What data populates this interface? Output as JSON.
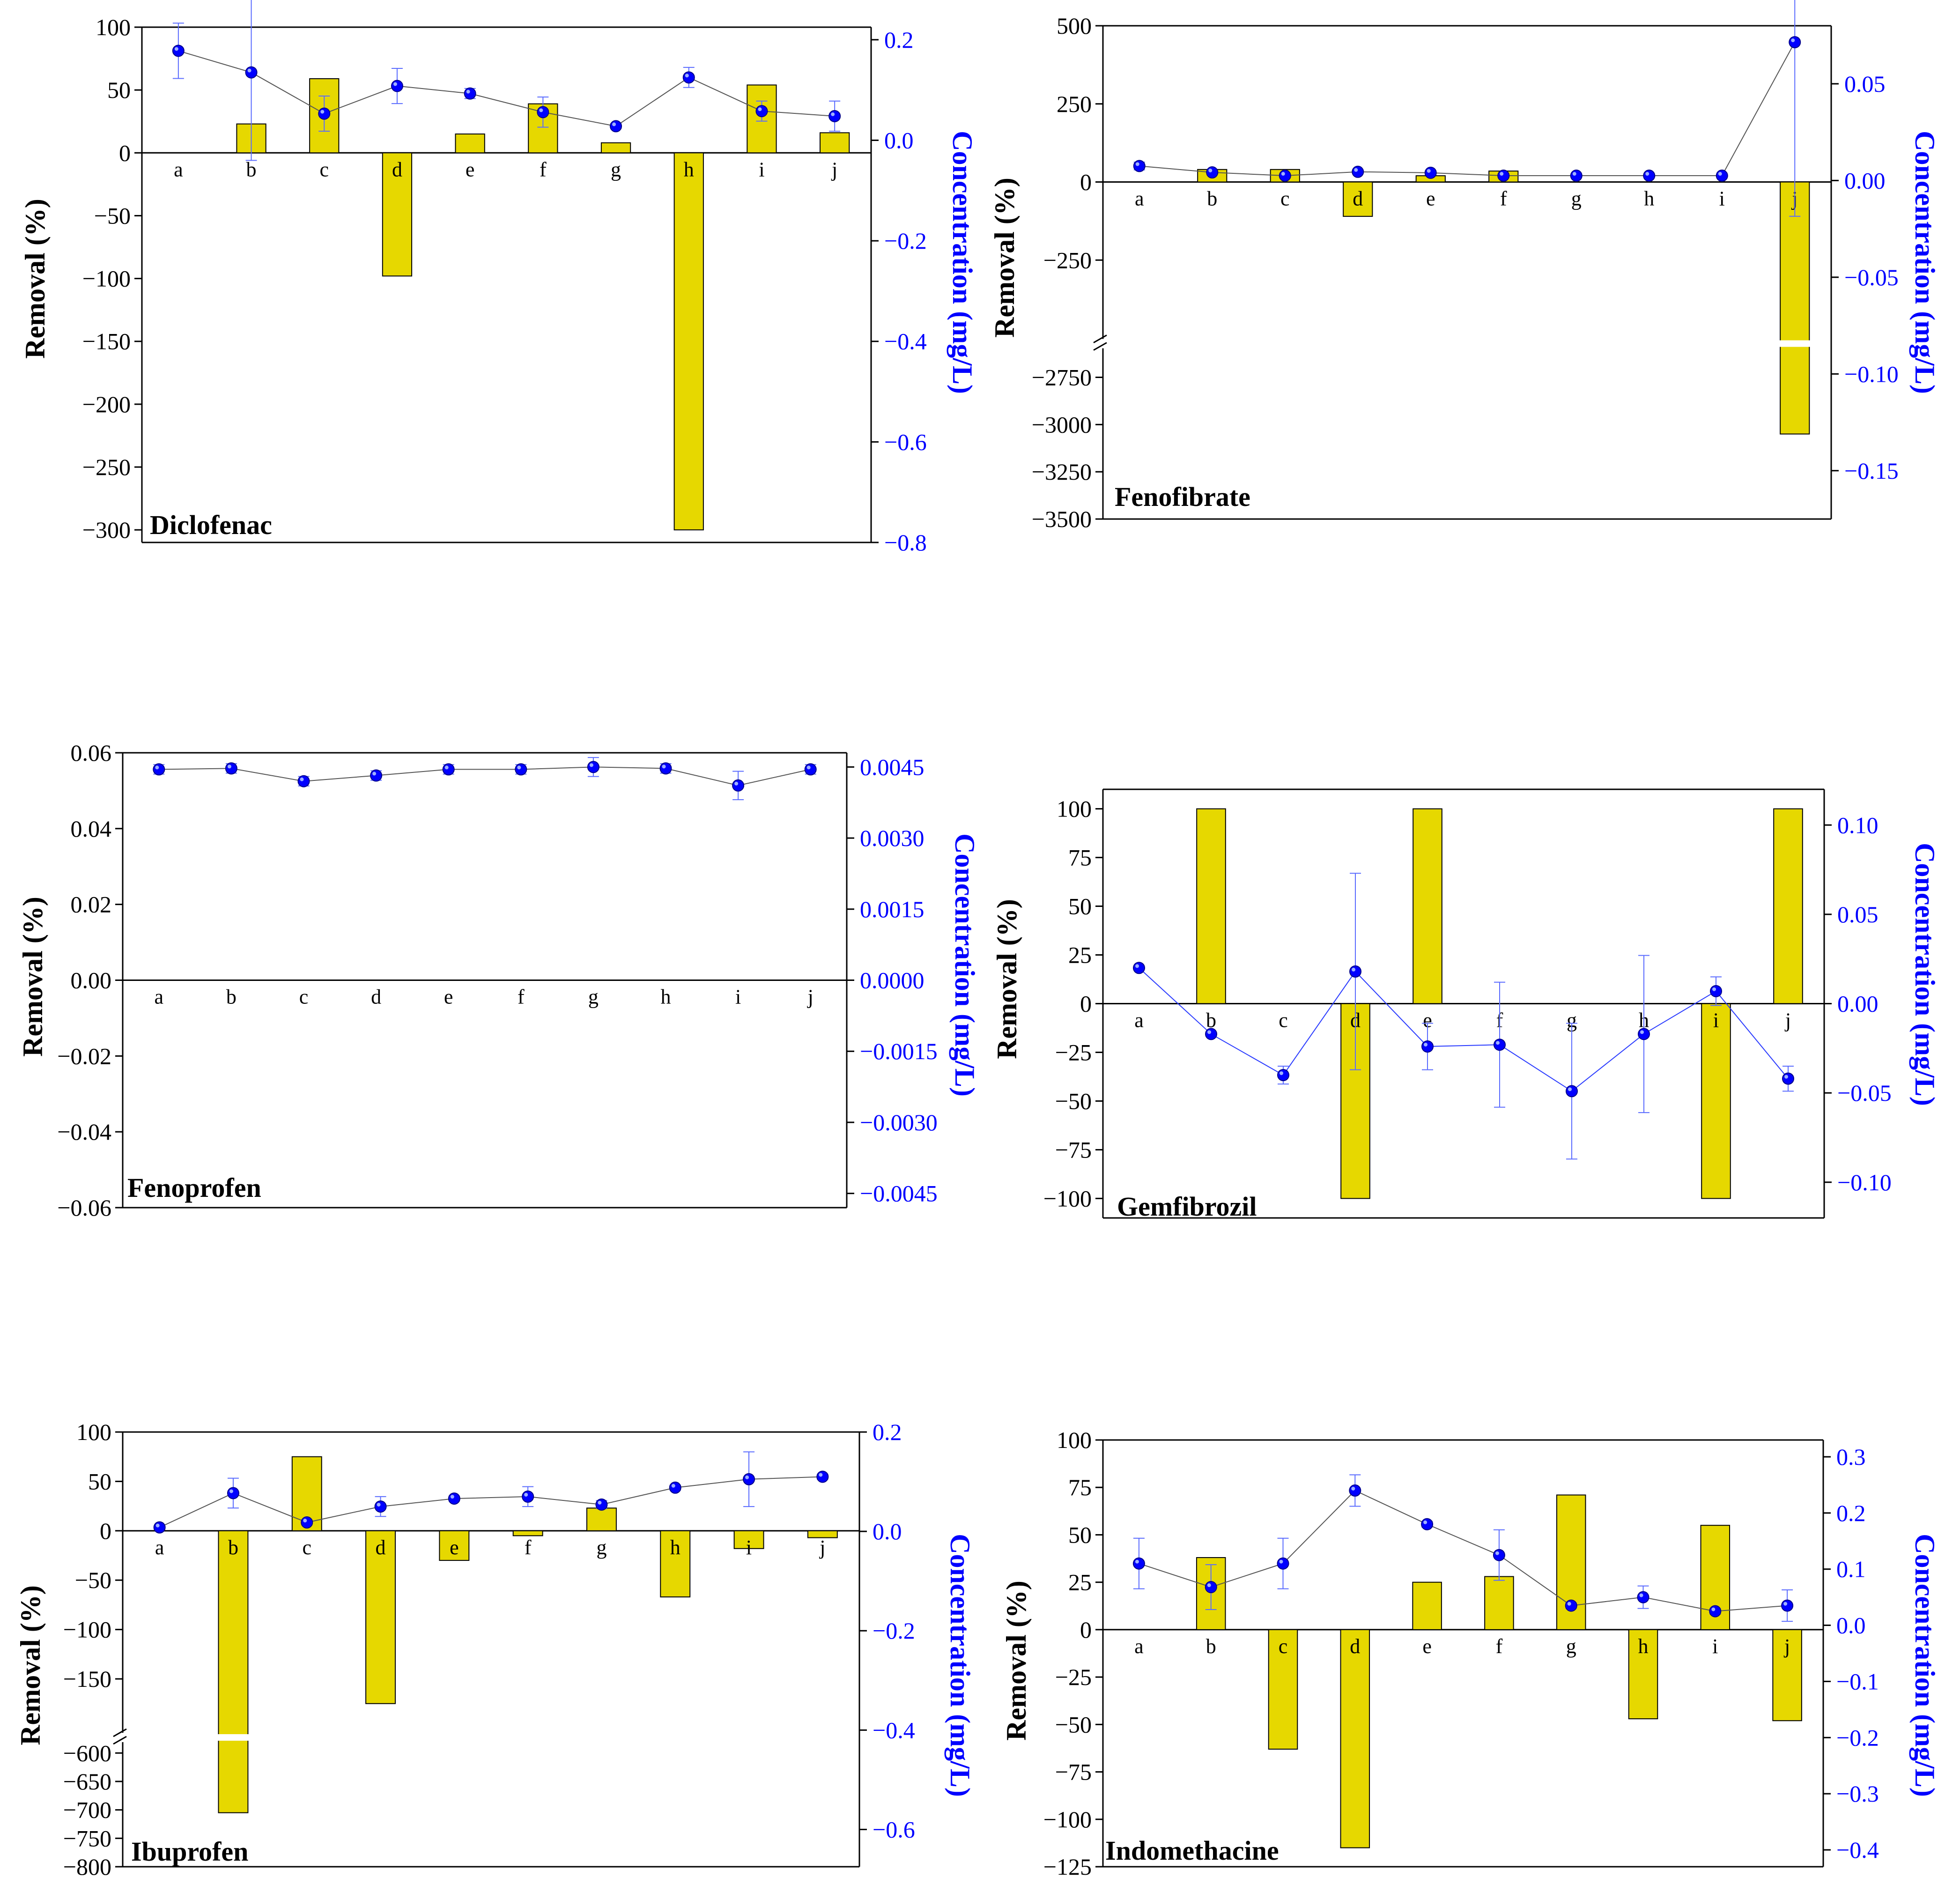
{
  "colors": {
    "bar_fill": "#e6d800",
    "bar_stroke": "#000000",
    "point": "#0000ff",
    "axis": "#000000",
    "right_axis": "#0000ff"
  },
  "chart_data": [
    {
      "type": "bar",
      "title": "Diclofenac",
      "categories": [
        "a",
        "b",
        "c",
        "d",
        "e",
        "f",
        "g",
        "h",
        "i",
        "j"
      ],
      "ylabel": "Removal (%)",
      "y2label": "Concentration (mg/L)",
      "ylim": [
        -310,
        100
      ],
      "yticks": [
        100,
        50,
        0,
        -50,
        -100,
        -150,
        -200,
        -250,
        -300
      ],
      "ytick_labels": [
        "100",
        "50",
        "0",
        "−50",
        "−100",
        "−150",
        "−200",
        "−250",
        "−300"
      ],
      "y2lim": [
        -0.8,
        0.225
      ],
      "y2ticks": [
        0.2,
        0.0,
        -0.2,
        -0.4,
        -0.6,
        -0.8
      ],
      "y2tick_labels": [
        "0.2",
        "0.0",
        "−0.2",
        "−0.4",
        "−0.6",
        "−0.8"
      ],
      "series": [
        {
          "name": "Removal",
          "axis": "left",
          "values": [
            null,
            23,
            59,
            -98,
            15,
            39,
            8,
            -300,
            54,
            16
          ]
        },
        {
          "name": "Concentration",
          "axis": "right",
          "line_color": "#555555",
          "values": [
            0.178,
            0.135,
            0.053,
            0.108,
            0.093,
            0.056,
            0.028,
            0.125,
            0.058,
            0.048
          ],
          "errors": [
            0.055,
            0.175,
            0.035,
            0.035,
            0.01,
            0.03,
            0.005,
            0.02,
            0.02,
            0.03
          ]
        }
      ]
    },
    {
      "type": "bar",
      "title": "Fenofibrate",
      "categories": [
        "a",
        "b",
        "c",
        "d",
        "e",
        "f",
        "g",
        "h",
        "i",
        "j"
      ],
      "ylabel": "Removal (%)",
      "y2label": "Concentration (mg/L)",
      "broken_axis": true,
      "ylim_upper": [
        -500,
        500
      ],
      "ylim_lower": [
        -3500,
        -2600
      ],
      "yticks": [
        500,
        250,
        0,
        -250,
        -2750,
        -3000,
        -3250,
        -3500
      ],
      "ytick_labels": [
        "500",
        "250",
        "0",
        "−250",
        "−2750",
        "−3000",
        "−3250",
        "−3500"
      ],
      "y2lim": [
        -0.175,
        0.08
      ],
      "y2ticks": [
        0.05,
        0.0,
        -0.05,
        -0.1,
        -0.15
      ],
      "y2tick_labels": [
        "0.05",
        "0.00",
        "−0.05",
        "−0.10",
        "−0.15"
      ],
      "series": [
        {
          "name": "Removal",
          "axis": "left",
          "values": [
            null,
            40,
            40,
            -110,
            20,
            35,
            null,
            null,
            null,
            -3050
          ]
        },
        {
          "name": "Concentration",
          "axis": "right",
          "line_color": "#555555",
          "values": [
            0.0075,
            0.0042,
            0.0025,
            0.0045,
            0.004,
            0.0025,
            0.0025,
            0.0025,
            0.0025,
            0.0715
          ],
          "errors": [
            0.002,
            0.001,
            0.001,
            0.001,
            0.001,
            0.001,
            0.0005,
            0.0005,
            0.0005,
            0.09
          ]
        }
      ]
    },
    {
      "type": "bar",
      "title": "Fenoprofen",
      "categories": [
        "a",
        "b",
        "c",
        "d",
        "e",
        "f",
        "g",
        "h",
        "i",
        "j"
      ],
      "ylabel": "Removal (%)",
      "y2label": "Concentration (mg/L)",
      "ylim": [
        -0.06,
        0.06
      ],
      "yticks": [
        0.06,
        0.04,
        0.02,
        0.0,
        -0.02,
        -0.04,
        -0.06
      ],
      "ytick_labels": [
        "0.06",
        "0.04",
        "0.02",
        "0.00",
        "−0.02",
        "−0.04",
        "−0.06"
      ],
      "y2lim": [
        -0.0048,
        0.0048
      ],
      "y2ticks": [
        0.0045,
        0.003,
        0.0015,
        0.0,
        -0.0015,
        -0.003,
        -0.0045
      ],
      "y2tick_labels": [
        "0.0045",
        "0.0030",
        "0.0015",
        "0.0000",
        "−0.0015",
        "−0.0030",
        "−0.0045"
      ],
      "series": [
        {
          "name": "Removal",
          "axis": "left",
          "values": [
            0,
            0,
            0,
            0,
            0,
            0,
            0,
            0,
            0,
            0
          ]
        },
        {
          "name": "Concentration",
          "axis": "right",
          "line_color": "#555555",
          "values": [
            0.00445,
            0.00447,
            0.0042,
            0.00432,
            0.00445,
            0.00445,
            0.0045,
            0.00447,
            0.00411,
            0.00445
          ],
          "errors": [
            0.0001,
            0.0001,
            0.0001,
            0.0001,
            0.0001,
            0.0001,
            0.0002,
            0.0001,
            0.0003,
            0.0001
          ]
        }
      ]
    },
    {
      "type": "bar",
      "title": "Gemfibrozil",
      "categories": [
        "a",
        "b",
        "c",
        "d",
        "e",
        "f",
        "g",
        "h",
        "i",
        "j"
      ],
      "ylabel": "Removal (%)",
      "y2label": "Concentration (mg/L)",
      "ylim": [
        -110,
        110
      ],
      "yticks": [
        100,
        75,
        50,
        25,
        0,
        -25,
        -50,
        -75,
        -100
      ],
      "ytick_labels": [
        "100",
        "75",
        "50",
        "25",
        "0",
        "−25",
        "−50",
        "−75",
        "−100"
      ],
      "y2lim": [
        -0.12,
        0.12
      ],
      "y2ticks": [
        0.1,
        0.05,
        0.0,
        -0.05,
        -0.1
      ],
      "y2tick_labels": [
        "0.10",
        "0.05",
        "0.00",
        "−0.05",
        "−0.10"
      ],
      "series": [
        {
          "name": "Removal",
          "axis": "left",
          "values": [
            null,
            100,
            null,
            -100,
            100,
            null,
            null,
            null,
            -100,
            100
          ]
        },
        {
          "name": "Concentration",
          "axis": "right",
          "line_color": "#2a3bff",
          "values": [
            0.02,
            -0.017,
            -0.04,
            0.018,
            -0.024,
            -0.023,
            -0.049,
            -0.017,
            0.007,
            -0.042
          ],
          "errors": [
            0.0,
            0.0,
            0.005,
            0.055,
            0.013,
            0.035,
            0.038,
            0.044,
            0.008,
            0.007
          ]
        }
      ]
    },
    {
      "type": "bar",
      "title": "Ibuprofen",
      "categories": [
        "a",
        "b",
        "c",
        "d",
        "e",
        "f",
        "g",
        "h",
        "i",
        "j"
      ],
      "ylabel": "Removal (%)",
      "y2label": "Concentration (mg/L)",
      "broken_axis": true,
      "ylim_upper": [
        -205,
        100
      ],
      "ylim_lower": [
        -800,
        -580
      ],
      "yticks": [
        100,
        50,
        0,
        -50,
        -100,
        -150,
        -600,
        -650,
        -700,
        -750,
        -800
      ],
      "ytick_labels": [
        "100",
        "50",
        "0",
        "−50",
        "−100",
        "−150",
        "−600",
        "−650",
        "−700",
        "−750",
        "−800"
      ],
      "y2lim": [
        -0.675,
        0.2
      ],
      "y2ticks": [
        0.2,
        0.0,
        -0.2,
        -0.4,
        -0.6
      ],
      "y2tick_labels": [
        "0.2",
        "0.0",
        "−0.2",
        "−0.4",
        "−0.6"
      ],
      "series": [
        {
          "name": "Removal",
          "axis": "left",
          "values": [
            null,
            -705,
            75,
            -175,
            -30,
            -5,
            23,
            -67,
            -18,
            -7
          ]
        },
        {
          "name": "Concentration",
          "axis": "right",
          "line_color": "#555555",
          "values": [
            0.008,
            0.077,
            0.018,
            0.05,
            0.066,
            0.07,
            0.054,
            0.088,
            0.105,
            0.11
          ],
          "errors": [
            0.003,
            0.03,
            0.005,
            0.02,
            0.005,
            0.02,
            0.008,
            0.005,
            0.055,
            0.005
          ]
        }
      ]
    },
    {
      "type": "bar",
      "title": "Indomethacine",
      "categories": [
        "a",
        "b",
        "c",
        "d",
        "e",
        "f",
        "g",
        "h",
        "i",
        "j"
      ],
      "ylabel": "Removal (%)",
      "y2label": "Concentration (mg/L)",
      "ylim": [
        -125,
        100
      ],
      "yticks": [
        100,
        75,
        50,
        25,
        0,
        -25,
        -50,
        -75,
        -100,
        -125
      ],
      "ytick_labels": [
        "100",
        "75",
        "50",
        "25",
        "0",
        "−25",
        "−50",
        "−75",
        "−100",
        "−125"
      ],
      "y2lim": [
        -0.43,
        0.33
      ],
      "y2ticks": [
        0.3,
        0.2,
        0.1,
        0.0,
        -0.1,
        -0.2,
        -0.3,
        -0.4
      ],
      "y2tick_labels": [
        "0.3",
        "0.2",
        "0.1",
        "0.0",
        "−0.1",
        "−0.2",
        "−0.3",
        "−0.4"
      ],
      "series": [
        {
          "name": "Removal",
          "axis": "left",
          "values": [
            null,
            38,
            -63,
            -115,
            25,
            28,
            71,
            -47,
            55,
            -48
          ]
        },
        {
          "name": "Concentration",
          "axis": "right",
          "line_color": "#555555",
          "values": [
            0.11,
            0.068,
            0.11,
            0.24,
            0.18,
            0.125,
            0.035,
            0.05,
            0.025,
            0.035
          ],
          "errors": [
            0.045,
            0.04,
            0.045,
            0.028,
            0.005,
            0.045,
            0.005,
            0.02,
            0.005,
            0.028
          ]
        }
      ]
    }
  ]
}
